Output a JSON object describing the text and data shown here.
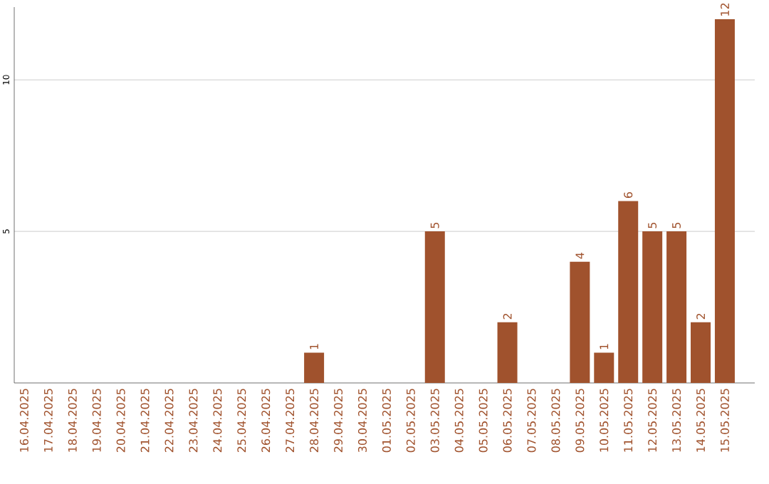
{
  "chart_data": {
    "type": "bar",
    "categories": [
      "16.04.2025",
      "17.04.2025",
      "18.04.2025",
      "19.04.2025",
      "20.04.2025",
      "21.04.2025",
      "22.04.2025",
      "23.04.2025",
      "24.04.2025",
      "25.04.2025",
      "26.04.2025",
      "27.04.2025",
      "28.04.2025",
      "29.04.2025",
      "30.04.2025",
      "01.05.2025",
      "02.05.2025",
      "03.05.2025",
      "04.05.2025",
      "05.05.2025",
      "06.05.2025",
      "07.05.2025",
      "08.05.2025",
      "09.05.2025",
      "10.05.2025",
      "11.05.2025",
      "12.05.2025",
      "13.05.2025",
      "14.05.2025",
      "15.05.2025"
    ],
    "values": [
      0,
      0,
      0,
      0,
      0,
      0,
      0,
      0,
      0,
      0,
      0,
      0,
      1,
      0,
      0,
      0,
      0,
      5,
      0,
      0,
      2,
      0,
      0,
      4,
      1,
      6,
      5,
      5,
      2,
      12
    ],
    "value_labels": [
      null,
      null,
      null,
      null,
      null,
      null,
      null,
      null,
      null,
      null,
      null,
      null,
      "1",
      null,
      null,
      null,
      null,
      "5",
      null,
      null,
      "2",
      null,
      null,
      "4",
      "1",
      "6",
      "5",
      "5",
      "2",
      "12"
    ],
    "color": "#a0522d",
    "ylim": [
      0,
      12.4
    ],
    "yticks": [
      5,
      10
    ],
    "grid": "y"
  }
}
